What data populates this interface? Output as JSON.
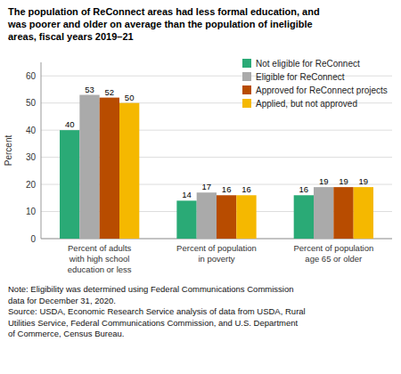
{
  "chart_data": {
    "type": "bar",
    "title": "The population of ReConnect areas had less formal education, and\nwas poorer and older on average than the population of ineligible\nareas, fiscal years 2019–21",
    "y_label": "Percent",
    "categories": [
      "Percent of adults\nwith high school\neducation or less",
      "Percent of population\nin poverty",
      "Percent of population\nage 65 or older"
    ],
    "series": [
      {
        "name": "Not eligible for ReConnect",
        "color": "#2aaa76",
        "values": [
          40,
          14,
          16
        ]
      },
      {
        "name": "Eligible for ReConnect",
        "color": "#aaaaaa",
        "values": [
          53,
          17,
          19
        ]
      },
      {
        "name": "Approved for ReConnect projects",
        "color": "#b84c00",
        "values": [
          52,
          16,
          19
        ]
      },
      {
        "name": "Applied, but not approved",
        "color": "#f5b800",
        "values": [
          50,
          16,
          19
        ]
      }
    ],
    "ylim": [
      0,
      65
    ],
    "yticks": [
      0,
      10,
      20,
      30,
      40,
      50,
      60
    ],
    "grid": true,
    "legend": "upper right",
    "data_labels": true,
    "annotations": [
      "Note: Eligibility was determined using Federal Communications Commission\ndata for December 31, 2020.",
      "Source: USDA, Economic Research Service analysis of data from USDA, Rural\nUtilities Service, Federal Communications Commission, and U.S. Department\nof Commerce, Census Bureau."
    ]
  }
}
